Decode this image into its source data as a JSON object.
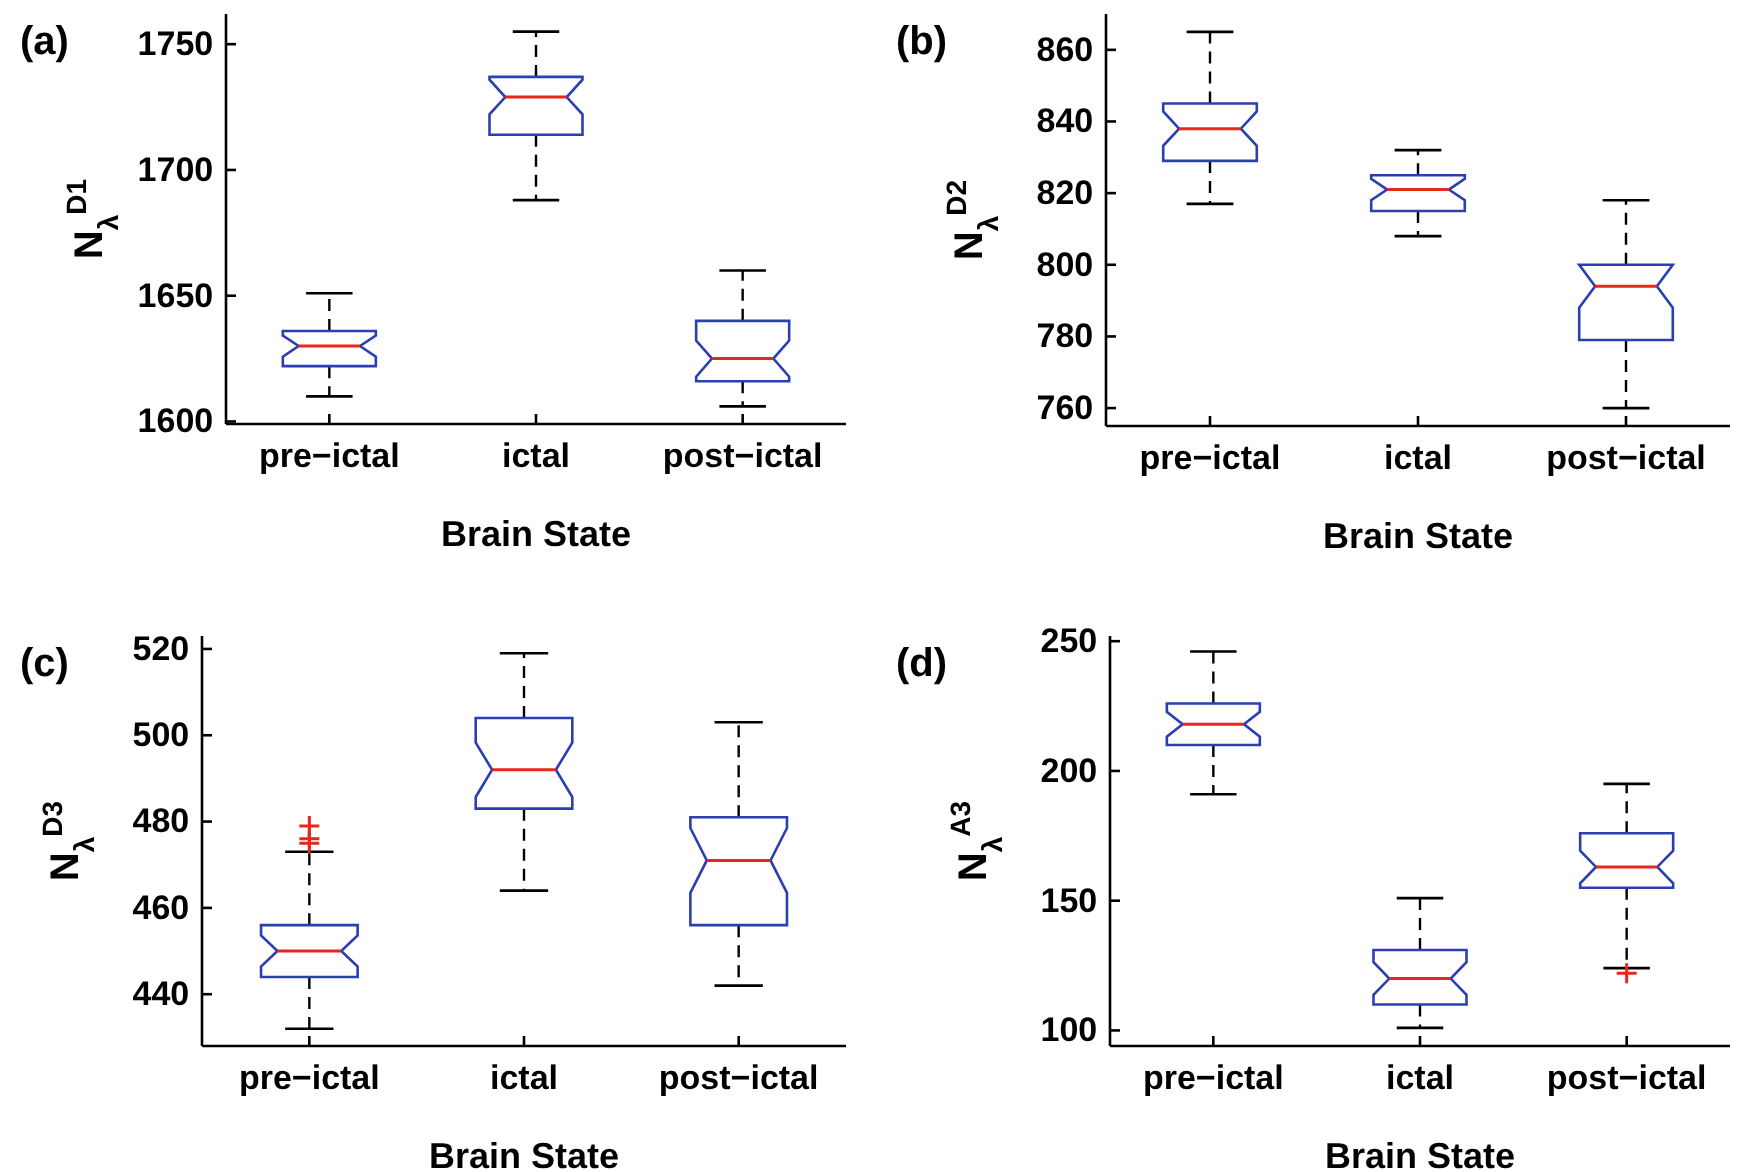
{
  "chart_data": [
    {
      "type": "box",
      "title": "(a)",
      "xlabel": "Brain State",
      "ylabel": "N$_{λ}$$^{D1}$",
      "categories": [
        "pre−ictal",
        "ictal",
        "post−ictal"
      ],
      "ylim": [
        1599,
        1762
      ],
      "yticks": [
        1600,
        1650,
        1700,
        1750
      ],
      "boxes": [
        {
          "low": 1610,
          "q1": 1622,
          "median": 1630,
          "q3": 1636,
          "high": 1651
        },
        {
          "low": 1688,
          "q1": 1714,
          "median": 1729,
          "q3": 1737,
          "high": 1755
        },
        {
          "low": 1606,
          "q1": 1616,
          "median": 1625,
          "q3": 1640,
          "high": 1660
        }
      ]
    },
    {
      "type": "box",
      "title": "(b)",
      "xlabel": "Brain State",
      "ylabel": "N$_{λ}$$^{D2}$",
      "categories": [
        "pre−ictal",
        "ictal",
        "post−ictal"
      ],
      "ylim": [
        755,
        870
      ],
      "yticks": [
        760,
        780,
        800,
        820,
        840,
        860
      ],
      "boxes": [
        {
          "low": 817,
          "q1": 829,
          "median": 838,
          "q3": 845,
          "high": 865
        },
        {
          "low": 808,
          "q1": 815,
          "median": 821,
          "q3": 825,
          "high": 832
        },
        {
          "low": 760,
          "q1": 779,
          "median": 794,
          "q3": 800,
          "high": 818
        }
      ]
    },
    {
      "type": "box",
      "title": "(c)",
      "xlabel": "Brain State",
      "ylabel": "N$_{λ}$$^{D3}$",
      "categories": [
        "pre−ictal",
        "ictal",
        "post−ictal"
      ],
      "ylim": [
        428,
        523
      ],
      "yticks": [
        440,
        460,
        480,
        500,
        520
      ],
      "boxes": [
        {
          "low": 432,
          "q1": 444,
          "median": 450,
          "q3": 456,
          "high": 473,
          "outliers": [
            479,
            476,
            475
          ]
        },
        {
          "low": 464,
          "q1": 483,
          "median": 492,
          "q3": 504,
          "high": 519
        },
        {
          "low": 442,
          "q1": 456,
          "median": 471,
          "q3": 481,
          "high": 503
        }
      ]
    },
    {
      "type": "box",
      "title": "(d)",
      "xlabel": "Brain State",
      "ylabel": "N$_{λ}$$^{A3}$",
      "categories": [
        "pre−ictal",
        "ictal",
        "post−ictal"
      ],
      "ylim": [
        94,
        252
      ],
      "yticks": [
        100,
        150,
        200,
        250
      ],
      "boxes": [
        {
          "low": 191,
          "q1": 210,
          "median": 218,
          "q3": 226,
          "high": 246
        },
        {
          "low": 101,
          "q1": 110,
          "median": 120,
          "q3": 131,
          "high": 151
        },
        {
          "low": 124,
          "q1": 155,
          "median": 163,
          "q3": 176,
          "high": 195,
          "outliers": [
            122
          ]
        }
      ]
    }
  ]
}
